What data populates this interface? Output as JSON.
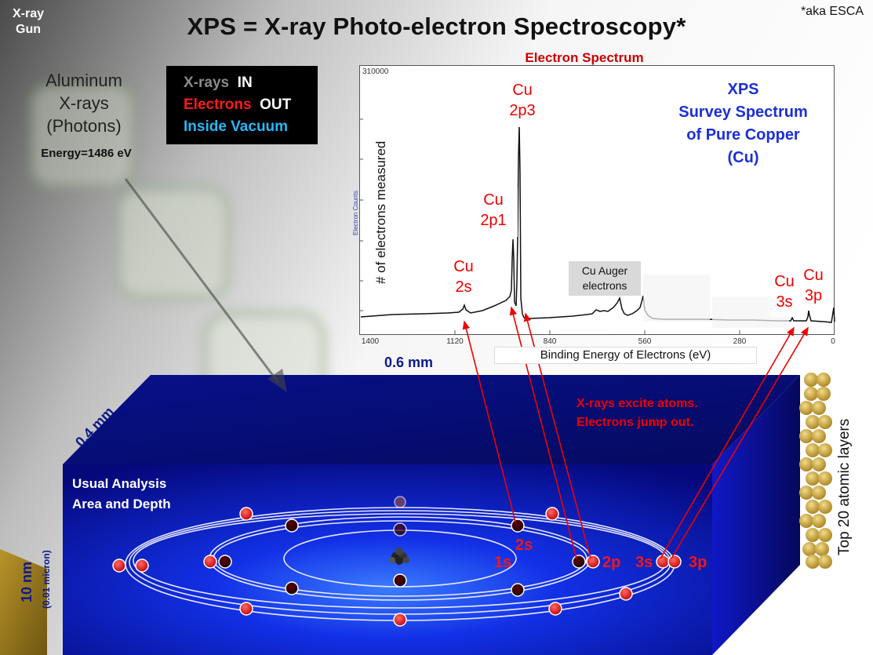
{
  "title": "XPS  =  X-ray Photo-electron Spectroscopy*",
  "aka": "*aka ESCA",
  "xray_gun": [
    "X-ray",
    "Gun"
  ],
  "source": {
    "lines": [
      "Aluminum",
      "X-rays",
      "(Photons)"
    ],
    "energy": "Energy=1486 eV"
  },
  "legend_box": {
    "xrays": "X-rays",
    "in": "IN",
    "electrons": "Electrons",
    "out": "OUT",
    "vacuum": "Inside Vacuum"
  },
  "spectrum": {
    "title": "Electron Spectrum",
    "y_max_label": "310000",
    "y_small_label": "Electron Counts",
    "y_label": "# of electrons measured",
    "x_label": "Binding Energy of Electrons (eV)",
    "x_ticks": [
      "1400",
      "1120",
      "840",
      "560",
      "280",
      "0"
    ],
    "xps_box": [
      "XPS",
      "Survey Spectrum",
      "of Pure Copper",
      "(Cu)"
    ],
    "peaks": {
      "cu2p3": [
        "Cu",
        "2p3"
      ],
      "cu2p1": [
        "Cu",
        "2p1"
      ],
      "cu2s": [
        "Cu",
        "2s"
      ],
      "cu3s": [
        "Cu",
        "3s"
      ],
      "cu3p": [
        "Cu",
        "3p"
      ]
    },
    "auger": [
      "Cu Auger",
      "electrons"
    ]
  },
  "sample": {
    "width": "0.6 mm",
    "depth": "0.4 mm",
    "thickness": "10 nm",
    "thickness_note": "(0.01 micron)",
    "analysis": [
      "Usual Analysis",
      "Area and Depth"
    ],
    "excite": [
      "X-rays excite atoms.",
      "Electrons  jump out."
    ],
    "layers": "Top 20 atomic layers"
  },
  "shells": {
    "s1": "1s",
    "s2": "2s",
    "p2": "2p",
    "s3": "3s",
    "p3": "3p"
  },
  "colors": {
    "accent_red": "#e00000",
    "title_blue": "#1b2fd6",
    "slab_blue": "#0a10c8",
    "label_navy": "#0c1a8a"
  }
}
